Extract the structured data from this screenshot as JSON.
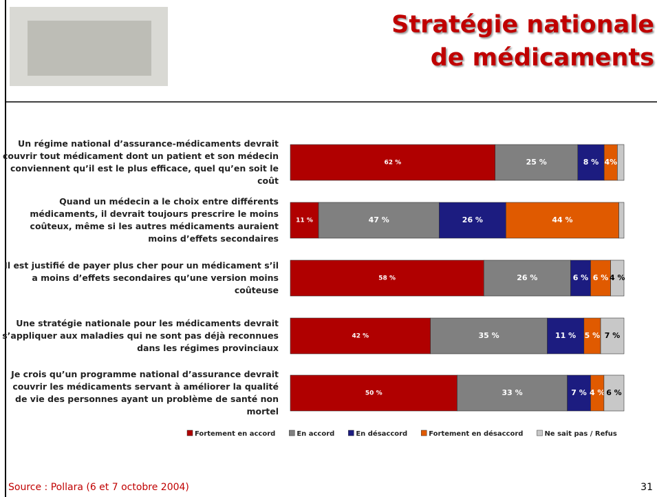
{
  "header": {
    "title": "Stratégie nationale\nde médicaments"
  },
  "chart_data": {
    "type": "bar",
    "orientation": "horizontal",
    "stacked": true,
    "normalized": true,
    "categories": [
      "Un régime national d’assurance-médicaments devrait couvrir tout médicament dont un patient et son médecin conviennent qu’il est le plus efficace, quel qu’en soit le coût",
      "Quand un médecin a le choix entre différents médicaments, il devrait toujours prescrire le moins coûteux, même si les autres médicaments auraient moins d’effets secondaires",
      "Il est justifié de payer plus cher pour un médicament s’il a moins d’effets secondaires qu’une version moins coûteuse",
      "Une stratégie nationale pour les médicaments devrait s’appliquer aux maladies qui ne sont pas déjà reconnues dans les régimes provinciaux",
      "Je crois qu’un programme national d’assurance devrait couvrir les médicaments servant à améliorer la qualité de vie des personnes ayant un problème de santé non mortel"
    ],
    "series": [
      {
        "name": "Fortement en accord",
        "color": "#b00000",
        "label_color": "#ffffff",
        "values": [
          62,
          11,
          58,
          42,
          50
        ],
        "value_labels": [
          "62 %",
          "11 %",
          "58 %",
          "42 %",
          "50 %"
        ]
      },
      {
        "name": "En accord",
        "color": "#808080",
        "label_color": "#ffffff",
        "values": [
          25,
          47,
          26,
          35,
          33
        ],
        "value_labels": [
          "25 %",
          "47 %",
          "26 %",
          "35 %",
          "33 %"
        ]
      },
      {
        "name": "En désaccord",
        "color": "#1c1c80",
        "label_color": "#ffffff",
        "values": [
          8,
          26,
          6,
          11,
          7
        ],
        "value_labels": [
          "8 %",
          "26 %",
          "6 %",
          "11 %",
          "7 %"
        ]
      },
      {
        "name": "Fortement en désaccord",
        "color": "#e05a00",
        "label_color": "#ffffff",
        "values": [
          4,
          44,
          6,
          5,
          4
        ],
        "value_labels": [
          "4%",
          "44 %",
          "6 %",
          "5 %",
          "4 %"
        ]
      },
      {
        "name": "Ne sait pas / Refus",
        "color": "#c8c8c8",
        "label_color": "#000000",
        "values": [
          2,
          2,
          4,
          7,
          6
        ],
        "value_labels": [
          null,
          null,
          "4 %",
          "7 %",
          "6 %"
        ]
      }
    ],
    "legend": "bottom"
  },
  "footer": {
    "source": "Source : Pollara (6 et 7 octobre 2004)",
    "page": "31"
  }
}
